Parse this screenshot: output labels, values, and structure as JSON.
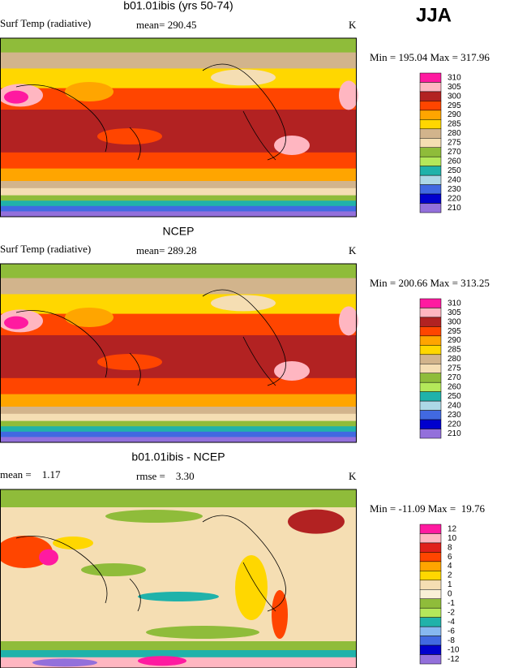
{
  "season": "JJA",
  "panels": [
    {
      "title": "b01.01ibis (yrs 50-74)",
      "left_text": "Surf Temp (radiative)",
      "mid_text": "mean= 290.45",
      "units": "K",
      "minmax": "Min = 195.04 Max = 317.96",
      "legend": [
        {
          "label": "310",
          "color": "#ff1aa0"
        },
        {
          "label": "305",
          "color": "#ffb6c1"
        },
        {
          "label": "300",
          "color": "#b22222"
        },
        {
          "label": "295",
          "color": "#ff4500"
        },
        {
          "label": "290",
          "color": "#ffa500"
        },
        {
          "label": "285",
          "color": "#ffd700"
        },
        {
          "label": "280",
          "color": "#d2b48c"
        },
        {
          "label": "275",
          "color": "#f5deb3"
        },
        {
          "label": "270",
          "color": "#8fbc3a"
        },
        {
          "label": "260",
          "color": "#b4e85a"
        },
        {
          "label": "250",
          "color": "#20b2aa"
        },
        {
          "label": "240",
          "color": "#add8e6"
        },
        {
          "label": "230",
          "color": "#4169e1"
        },
        {
          "label": "220",
          "color": "#0000cd"
        },
        {
          "label": "210",
          "color": "#9370db"
        }
      ]
    },
    {
      "title": "NCEP",
      "left_text": "Surf Temp (radiative)",
      "mid_text": "mean= 289.28",
      "units": "K",
      "minmax": "Min = 200.66 Max = 313.25",
      "legend": [
        {
          "label": "310",
          "color": "#ff1aa0"
        },
        {
          "label": "305",
          "color": "#ffb6c1"
        },
        {
          "label": "300",
          "color": "#b22222"
        },
        {
          "label": "295",
          "color": "#ff4500"
        },
        {
          "label": "290",
          "color": "#ffa500"
        },
        {
          "label": "285",
          "color": "#ffd700"
        },
        {
          "label": "280",
          "color": "#d2b48c"
        },
        {
          "label": "275",
          "color": "#f5deb3"
        },
        {
          "label": "270",
          "color": "#8fbc3a"
        },
        {
          "label": "260",
          "color": "#b4e85a"
        },
        {
          "label": "250",
          "color": "#20b2aa"
        },
        {
          "label": "240",
          "color": "#add8e6"
        },
        {
          "label": "230",
          "color": "#4169e1"
        },
        {
          "label": "220",
          "color": "#0000cd"
        },
        {
          "label": "210",
          "color": "#9370db"
        }
      ]
    },
    {
      "title": "b01.01ibis - NCEP",
      "left_text": "mean =    1.17",
      "mid_text": "rmse =    3.30",
      "units": "K",
      "minmax": "Min = -11.09 Max =  19.76",
      "legend": [
        {
          "label": "12",
          "color": "#ff1aa0"
        },
        {
          "label": "10",
          "color": "#ffb6c1"
        },
        {
          "label": "8",
          "color": "#e0201b"
        },
        {
          "label": "6",
          "color": "#ff4500"
        },
        {
          "label": "4",
          "color": "#ffa500"
        },
        {
          "label": "2",
          "color": "#ffd700"
        },
        {
          "label": "1",
          "color": "#f5deb3"
        },
        {
          "label": "0",
          "color": "#faf0d7"
        },
        {
          "label": "-1",
          "color": "#8fbc3a"
        },
        {
          "label": "-2",
          "color": "#b4e85a"
        },
        {
          "label": "-4",
          "color": "#20b2aa"
        },
        {
          "label": "-6",
          "color": "#87b8f0"
        },
        {
          "label": "-8",
          "color": "#4169e1"
        },
        {
          "label": "-10",
          "color": "#0000cd"
        },
        {
          "label": "-12",
          "color": "#9370db"
        }
      ]
    }
  ]
}
